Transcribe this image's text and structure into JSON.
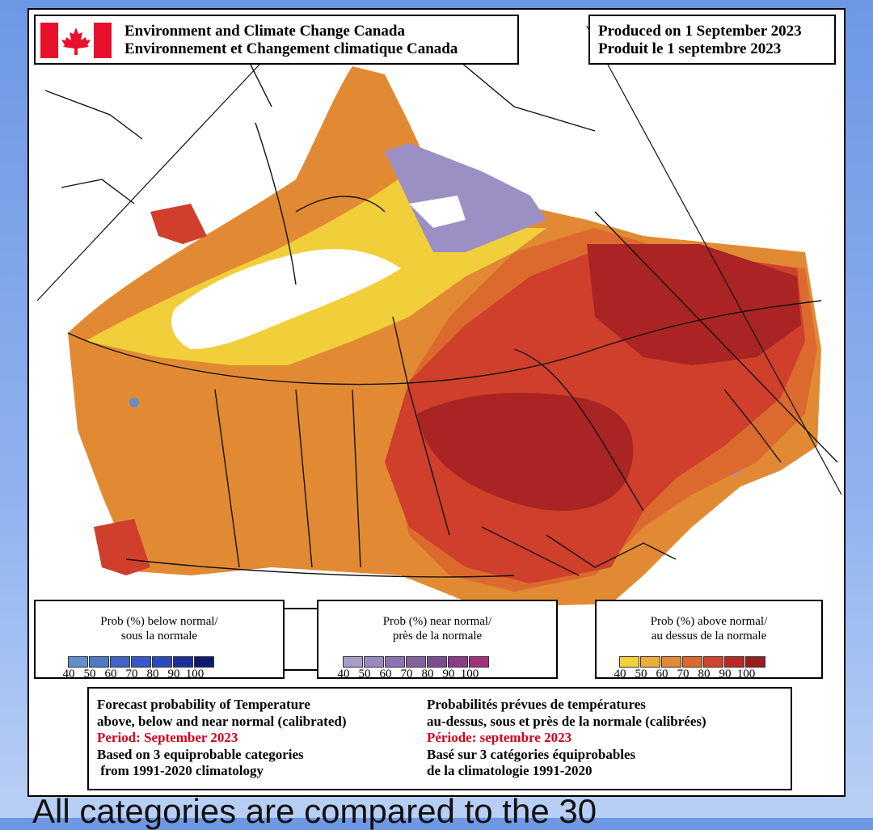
{
  "header": {
    "agency_en": "Environment and Climate Change Canada",
    "agency_fr": "Environnement et Changement climatique Canada",
    "produced_en": "Produced on 1 September 2023",
    "produced_fr": "Produit le 1 septembre 2023"
  },
  "legends": {
    "below": {
      "title_en": "Prob (%) below normal/",
      "title_fr": "sous la normale",
      "colors": [
        "#5f8fcc",
        "#4c7ac6",
        "#3f63c8",
        "#3756c8",
        "#2d48bd",
        "#1d2f9a",
        "#0c1a6e"
      ],
      "ticks": [
        "40",
        "50",
        "60",
        "70",
        "80",
        "90",
        "100"
      ]
    },
    "near": {
      "title_en": "Prob (%) near normal/",
      "title_fr": "près de la normale",
      "colors": [
        "#a79cc8",
        "#9a89c0",
        "#8d73b4",
        "#84619f",
        "#7b4d8e",
        "#8a3c86",
        "#a2327e"
      ],
      "ticks": [
        "40",
        "50",
        "60",
        "70",
        "80",
        "90",
        "100"
      ]
    },
    "above": {
      "title_en": "Prob (%) above normal/",
      "title_fr": "au dessus de la normale",
      "colors": [
        "#f1d23a",
        "#ecae36",
        "#e28a33",
        "#dc6a2e",
        "#d2452b",
        "#b72826",
        "#991c1f"
      ],
      "ticks": [
        "40",
        "50",
        "60",
        "70",
        "80",
        "90",
        "100"
      ]
    }
  },
  "notes": {
    "en": {
      "line1": "Forecast probability of Temperature",
      "line2": "above, below and near normal (calibrated)",
      "period": "Period: September 2023",
      "line4": "Based on 3 equiprobable categories",
      "line5": " from 1991-2020 climatology"
    },
    "fr": {
      "line1": "Probabilités prévues de températures",
      "line2": "au-dessus, sous et près de la normale (calibrées)",
      "period": "Période: septembre 2023",
      "line4": "Basé sur 3 catégories équiprobables",
      "line5": "de la climatologie 1991-2020"
    }
  },
  "caption": "All categories are compared to the 30",
  "colors": {
    "above_50": "#ecae36",
    "above_60": "#e28a33",
    "above_80": "#d2452b",
    "above_90": "#b72826",
    "near_normal": "#9c8fc4",
    "canada_flag_red": "#e8112d"
  }
}
